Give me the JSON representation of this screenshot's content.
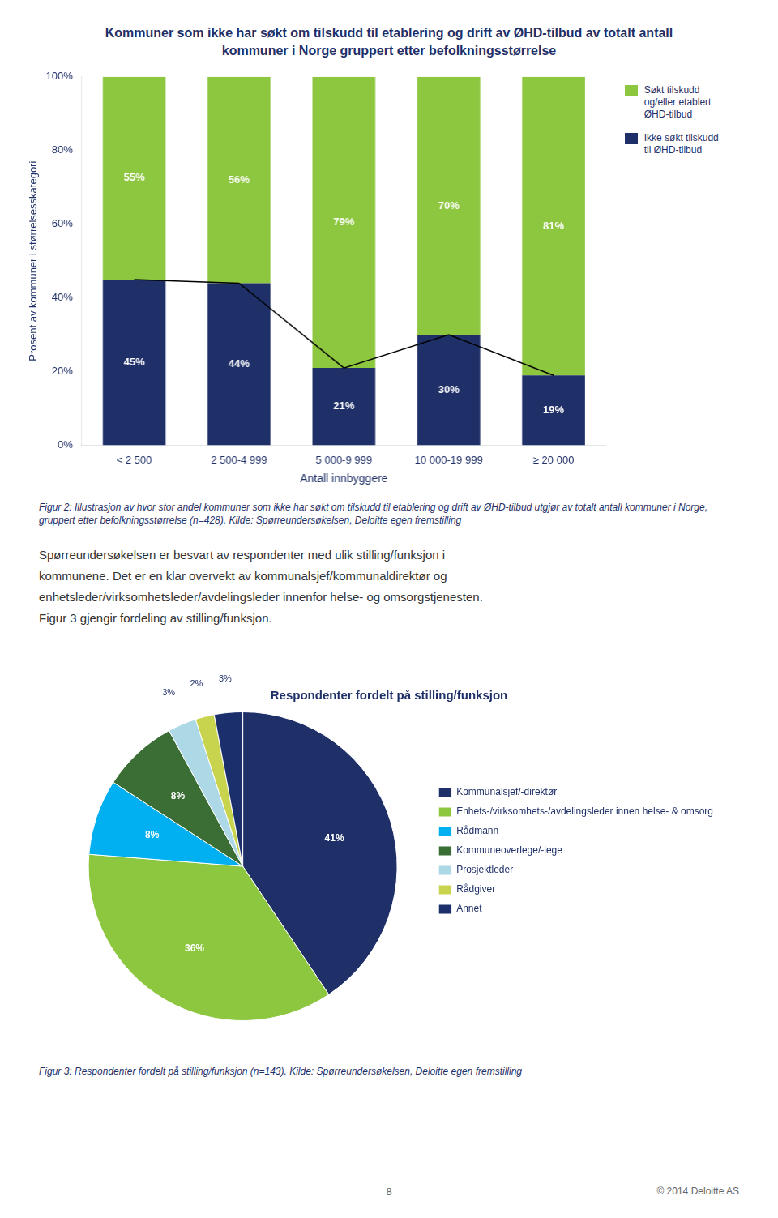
{
  "chart_data": [
    {
      "type": "bar",
      "title": [
        "Kommuner som ikke har søkt om tilskudd til etablering og drift av ØHD-tilbud av totalt antall",
        "kommuner i Norge gruppert etter befolkningsstørrelse"
      ],
      "xlabel": "Antall innbyggere",
      "ylabel": "Prosent av kommuner i størrelsesskategori",
      "categories": [
        "< 2 500",
        "2 500-4 999",
        "5 000-9 999",
        "10 000-19 999",
        "≥ 20 000"
      ],
      "series": [
        {
          "name": "Ikke søkt tilskudd\ntil ØHD-tilbud",
          "color": "#1f3068",
          "values": [
            45,
            44,
            21,
            30,
            19
          ],
          "value_labels": [
            "45%",
            "44%",
            "21%",
            "30%",
            "19%"
          ]
        },
        {
          "name": "Søkt tilskudd\nog/eller etablert\nØHD-tilbud",
          "color": "#8dc63f",
          "values": [
            55,
            56,
            79,
            70,
            81
          ],
          "value_labels": [
            "55%",
            "56%",
            "79%",
            "70%",
            "81%"
          ]
        },
        {
          "type": "line",
          "color": "#000000",
          "marker": "none",
          "values": [
            45,
            44,
            21,
            30,
            19
          ]
        }
      ],
      "stacked": true,
      "data_labels": true,
      "grid": false,
      "legend": "right",
      "ylim": [
        0,
        100
      ],
      "yticks": [
        {
          "value": 0,
          "label": "0%"
        },
        {
          "value": 20,
          "label": "20%"
        },
        {
          "value": 40,
          "label": "40%"
        },
        {
          "value": 60,
          "label": "60%"
        },
        {
          "value": 80,
          "label": "80%"
        },
        {
          "value": 100,
          "label": "100%"
        }
      ],
      "annotations": [
        "Figur 2: Illustrasjon av hvor stor andel kommuner som ikke har søkt om tilskudd til etablering og drift av ØHD-tilbud utgjør av totalt antall kommuner i Norge, gruppert etter befolkningsstørrelse (n=428). Kilde: Spørreundersøkelsen, Deloitte egen fremstilling",
        "Spørreundersøkelsen er besvart av respondenter med ulik stilling/funksjon i",
        "kommunene. Det er en klar overvekt av kommunalsjef/kommunaldirektør og",
        "enhetsleder/virksomhetsleder/avdelingsleder innenfor helse- og omsorgstjenesten.",
        "Figur 3 gjengir fordeling av stilling/funksjon."
      ]
    },
    {
      "type": "pie",
      "title": "Respondenter fordelt på stilling/funksjon",
      "categories": [
        "Kommunalsjef/-direktør",
        "Enhets-/virksomhets-/avdelingsleder innen helse- & omsorg",
        "Rådmann",
        "Kommuneoverlege/-lege",
        "Prosjektleder",
        "Rådgiver",
        "Annet"
      ],
      "values": [
        41,
        36,
        8,
        8,
        3,
        2,
        3
      ],
      "value_labels": [
        "41%",
        "36%",
        "8%",
        "8%",
        "3%",
        "2%",
        "3%"
      ],
      "colors": [
        "#1f3068",
        "#8dc63f",
        "#00b0f0",
        "#3b6e35",
        "#add8e6",
        "#c8d44e",
        "#1a2f6b"
      ],
      "data_labels": true,
      "legend": "right",
      "annotations": [
        "Figur 3: Respondenter fordelt på stilling/funksjon (n=143). Kilde: Spørreundersøkelsen, Deloitte egen fremstilling"
      ]
    }
  ],
  "annotations": [
    "8",
    "© 2014 Deloitte AS"
  ]
}
